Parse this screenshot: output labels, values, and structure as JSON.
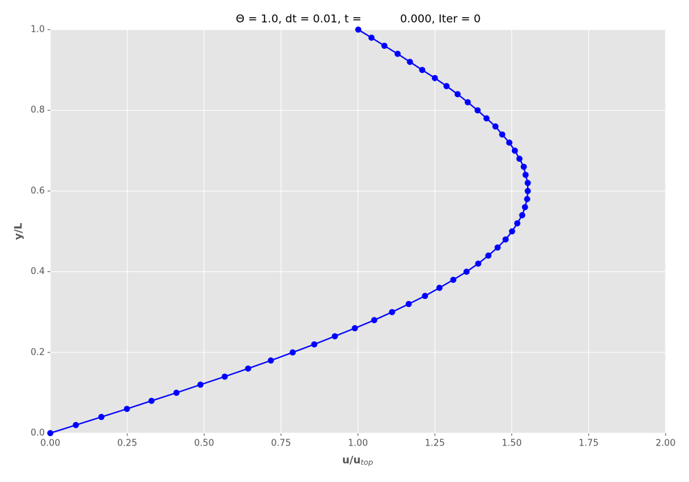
{
  "chart_data": {
    "type": "line",
    "title": "Θ = 1.0, dt = 0.01, t =           0.000, Iter = 0",
    "xlabel": "u/u",
    "xlabel_sub": "top",
    "ylabel": "y/L",
    "series": [
      {
        "color": "#0000ff",
        "x": [
          0,
          0.083,
          0.166,
          0.249,
          0.329,
          0.41,
          0.488,
          0.567,
          0.643,
          0.717,
          0.788,
          0.858,
          0.925,
          0.99,
          1.053,
          1.111,
          1.165,
          1.218,
          1.265,
          1.31,
          1.353,
          1.391,
          1.424,
          1.454,
          1.48,
          1.501,
          1.518,
          1.534,
          1.543,
          1.55,
          1.552,
          1.552,
          1.545,
          1.539,
          1.525,
          1.51,
          1.492,
          1.469,
          1.447,
          1.418,
          1.389,
          1.357,
          1.324,
          1.288,
          1.25,
          1.209,
          1.169,
          1.129,
          1.086,
          1.044,
          1.001
        ],
        "values": [
          0,
          0.02,
          0.04,
          0.06,
          0.08,
          0.1,
          0.12,
          0.14,
          0.16,
          0.18,
          0.2,
          0.22,
          0.24,
          0.26,
          0.28,
          0.3,
          0.32,
          0.34,
          0.36,
          0.38,
          0.4,
          0.42,
          0.44,
          0.46,
          0.48,
          0.5,
          0.52,
          0.54,
          0.56,
          0.58,
          0.6,
          0.62,
          0.64,
          0.66,
          0.68,
          0.7,
          0.72,
          0.74,
          0.76,
          0.78,
          0.8,
          0.82,
          0.84,
          0.86,
          0.88,
          0.9,
          0.92,
          0.94,
          0.96,
          0.98,
          1.0
        ]
      }
    ],
    "xlim": [
      0,
      2
    ],
    "ylim": [
      0,
      1
    ],
    "xticks": [
      {
        "value": 0,
        "label": "0.00"
      },
      {
        "value": 0.25,
        "label": "0.25"
      },
      {
        "value": 0.5,
        "label": "0.50"
      },
      {
        "value": 0.75,
        "label": "0.75"
      },
      {
        "value": 1,
        "label": "1.00"
      },
      {
        "value": 1.25,
        "label": "1.25"
      },
      {
        "value": 1.5,
        "label": "1.50"
      },
      {
        "value": 1.75,
        "label": "1.75"
      },
      {
        "value": 2,
        "label": "2.00"
      }
    ],
    "yticks": [
      {
        "value": 0,
        "label": "0.0"
      },
      {
        "value": 0.2,
        "label": "0.2"
      },
      {
        "value": 0.4,
        "label": "0.4"
      },
      {
        "value": 0.6,
        "label": "0.6"
      },
      {
        "value": 0.8,
        "label": "0.8"
      },
      {
        "value": 1,
        "label": "1.0"
      }
    ],
    "grid": true
  }
}
